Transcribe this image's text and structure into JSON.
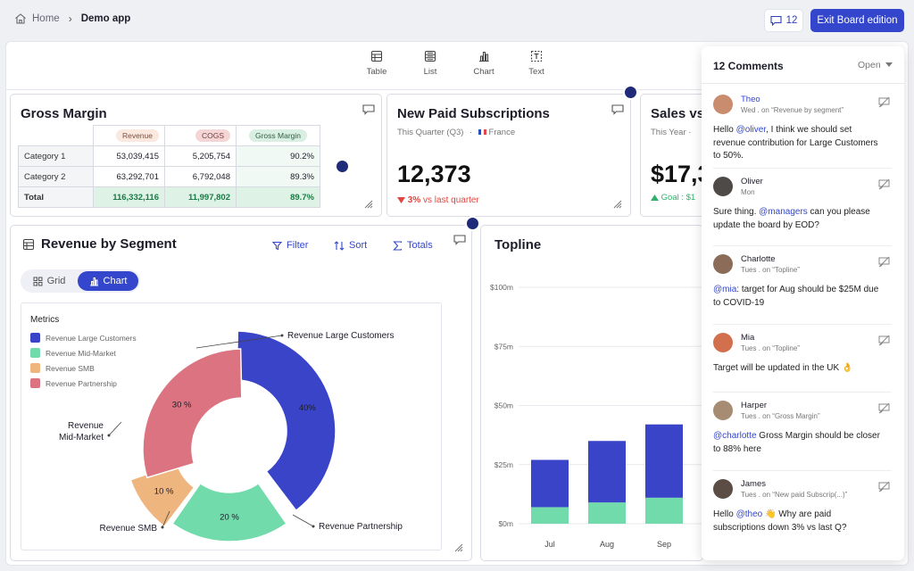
{
  "breadcrumb": {
    "home": "Home",
    "separator": "›",
    "current": "Demo app"
  },
  "header": {
    "comment_count": "12",
    "exit_label": "Exit Board edition"
  },
  "toolbar": {
    "items": [
      "Table",
      "List",
      "Chart",
      "Text"
    ]
  },
  "gross_margin": {
    "title": "Gross Margin",
    "columns": [
      "Revenue",
      "COGS",
      "Gross Margin"
    ],
    "rows": [
      {
        "label": "Category 1",
        "revenue": "53,039,415",
        "cogs": "5,205,754",
        "margin": "90.2%"
      },
      {
        "label": "Category 2",
        "revenue": "63,292,701",
        "cogs": "6,792,048",
        "margin": "89.3%"
      }
    ],
    "total": {
      "label": "Total",
      "revenue": "116,332,116",
      "cogs": "11,997,802",
      "margin": "89.7%"
    }
  },
  "subscriptions": {
    "title": "New Paid Subscriptions",
    "period": "This Quarter (Q3)",
    "bullet": "·",
    "region": "France",
    "value": "12,373",
    "delta": "3%",
    "delta_label": "vs last quarter"
  },
  "sales": {
    "title": "Sales vs",
    "period": "This Year ·",
    "value": "$17,3",
    "goal": "Goal : $1"
  },
  "revenue_segment": {
    "title": "Revenue by Segment",
    "actions": {
      "filter": "Filter",
      "sort": "Sort",
      "totals": "Totals"
    },
    "view_toggle": {
      "grid": "Grid",
      "chart": "Chart"
    },
    "metrics_label": "Metrics"
  },
  "topline": {
    "title": "Topline"
  },
  "chart_data": [
    {
      "type": "pie",
      "title": "Revenue by Segment",
      "legend_title": "Metrics",
      "categories": [
        "Revenue Large Customers",
        "Revenue Mid-Market",
        "Revenue SMB",
        "Revenue Partnership"
      ],
      "values": [
        40,
        20,
        10,
        30
      ],
      "value_labels": [
        "40%",
        "20 %",
        "10 %",
        "30 %"
      ],
      "callouts": [
        "Revenue Large Customers",
        "Revenue\nMid-Market",
        "Revenue SMB",
        "Revenue Partnership"
      ],
      "colors": [
        "#3a44c9",
        "#72dbab",
        "#efb57e",
        "#db7381"
      ]
    },
    {
      "type": "bar",
      "title": "Topline",
      "stacked": true,
      "categories": [
        "Jul",
        "Aug",
        "Sep"
      ],
      "series": [
        {
          "name": "base",
          "values": [
            7,
            9,
            11
          ],
          "color": "#72dbab"
        },
        {
          "name": "top",
          "values": [
            20,
            26,
            31
          ],
          "color": "#3a44c9"
        }
      ],
      "ylim": [
        0,
        100
      ],
      "yticks": [
        "$0m",
        "$25m",
        "$50m",
        "$75m",
        "$100m"
      ]
    }
  ],
  "comments_panel": {
    "title": "12 Comments",
    "filter": "Open",
    "comments": [
      {
        "name": "Theo",
        "meta": "Wed . on “Revenue by segment”",
        "mention": "@oliver",
        "before": "Hello ",
        "after": ", I think we should set revenue contribution for Large Customers to 50%.",
        "avatar_color": "#c98c6f"
      },
      {
        "name": "Oliver",
        "meta": "Mon",
        "mention": "@managers",
        "before": "Sure thing. ",
        "after": " can you please update the board by EOD?",
        "avatar_color": "#4d4a47"
      },
      {
        "name": "Charlotte",
        "meta": "Tues . on “Topline”",
        "mention": "@mia",
        "before": "",
        "after": ": target for Aug should be $25M due to COVID-19",
        "avatar_color": "#8b6c58"
      },
      {
        "name": "Mia",
        "meta": "Tues . on “Topline”",
        "mention": "",
        "before": "Target will be updated in the UK 👌",
        "after": "",
        "avatar_color": "#d2704d"
      },
      {
        "name": "Harper",
        "meta": "Tues . on “Gross Margin”",
        "mention": "@charlotte",
        "before": "",
        "after": " Gross Margin should be closer to 88% here",
        "avatar_color": "#a58c72"
      },
      {
        "name": "James",
        "meta": "Tues . on “New paid Subscrip(...)”",
        "mention": "@theo",
        "before": "Hello ",
        "after": " 👋 Why are paid subscriptions down 3% vs last Q?",
        "avatar_color": "#5b4d44"
      }
    ]
  },
  "colors": {
    "accent": "#3346cc",
    "negative": "#e0463f",
    "positive": "#2fb26c"
  }
}
